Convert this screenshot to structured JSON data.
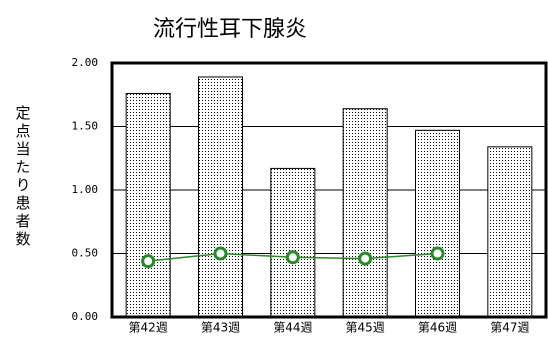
{
  "chart_data": {
    "type": "bar-line",
    "title": "流行性耳下腺炎",
    "y_label": "定点当たり患者数",
    "categories": [
      "第42週",
      "第43週",
      "第44週",
      "第45週",
      "第46週",
      "第47週"
    ],
    "series": [
      {
        "type": "bar",
        "color": "#000000",
        "values": [
          1.76,
          1.89,
          1.17,
          1.64,
          1.47,
          1.34
        ]
      },
      {
        "type": "line",
        "color": "#2a8a2a",
        "values": [
          0.44,
          0.5,
          0.47,
          0.46,
          0.5,
          null
        ]
      }
    ],
    "ylim": [
      0,
      2
    ],
    "yticks": [
      {
        "value": 0,
        "label": "0.00"
      },
      {
        "value": 0.5,
        "label": "0.50"
      },
      {
        "value": 1,
        "label": "1.00"
      },
      {
        "value": 1.5,
        "label": "1.50"
      },
      {
        "value": 2,
        "label": "2.00"
      }
    ],
    "grid": true
  }
}
